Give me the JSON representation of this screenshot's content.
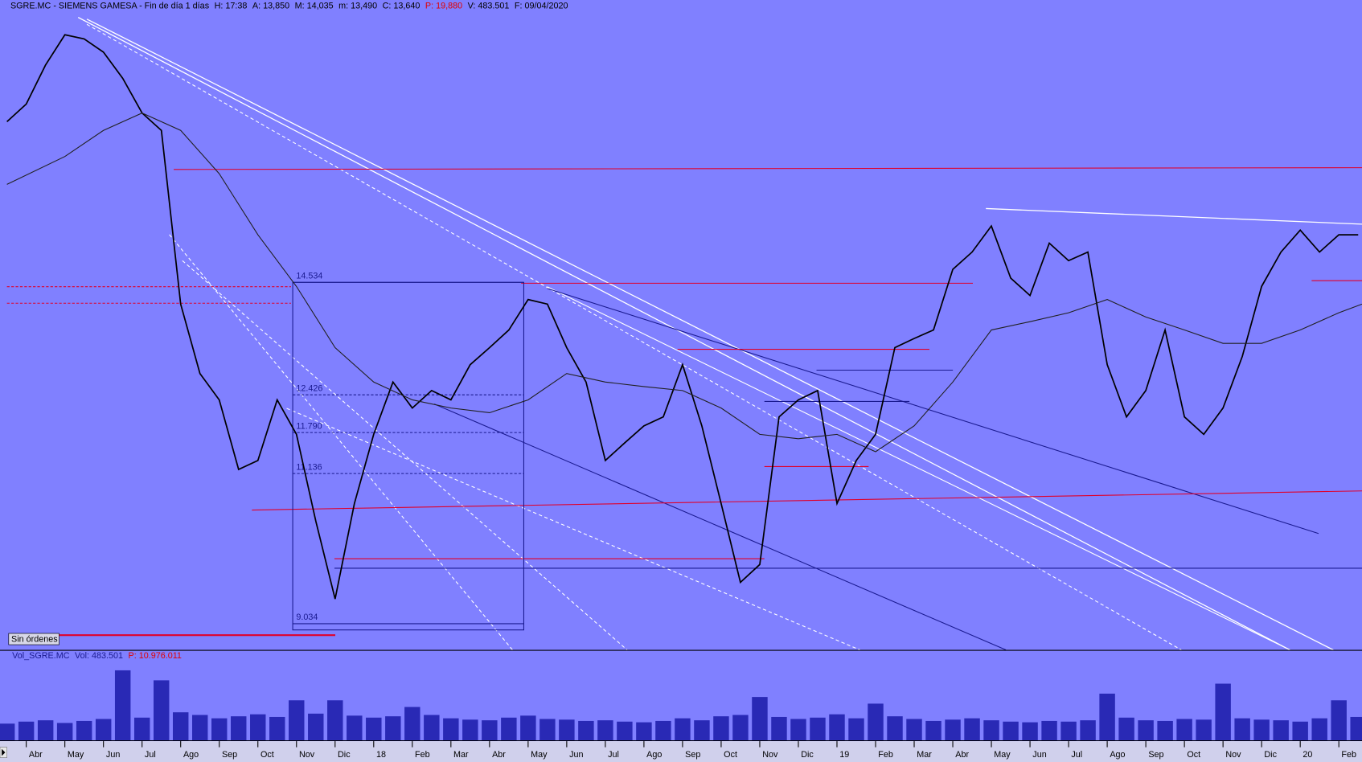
{
  "header": [
    "SGRE.MC - SIEMENS GAMESA - Fin de día 1 días",
    "H: 17:38",
    "A: 13,850",
    "M: 14,035",
    "m: 13,490",
    "C: 13,640",
    "P: 19,880",
    "V: 483.501",
    "F: 09/04/2020"
  ],
  "orders_label": "Sin órdenes",
  "volume_header": [
    "Vol_SGRE.MC",
    "Vol: 483.501",
    "P: 10.976.011"
  ],
  "chart_data": {
    "type": "line",
    "log": true,
    "ylim": [
      8.71,
      21.15
    ],
    "xlim": [
      0.5,
      35.6
    ],
    "xticks": [
      {
        "value": 1,
        "label": "Abr"
      },
      {
        "value": 2,
        "label": "May"
      },
      {
        "value": 3,
        "label": "Jun"
      },
      {
        "value": 4,
        "label": "Jul"
      },
      {
        "value": 5,
        "label": "Ago"
      },
      {
        "value": 6,
        "label": "Sep"
      },
      {
        "value": 7,
        "label": "Oct"
      },
      {
        "value": 8,
        "label": "Nov"
      },
      {
        "value": 9,
        "label": "Dic"
      },
      {
        "value": 10,
        "label": "18"
      },
      {
        "value": 11,
        "label": "Feb"
      },
      {
        "value": 12,
        "label": "Mar"
      },
      {
        "value": 13,
        "label": "Abr"
      },
      {
        "value": 14,
        "label": "May"
      },
      {
        "value": 15,
        "label": "Jun"
      },
      {
        "value": 16,
        "label": "Jul"
      },
      {
        "value": 17,
        "label": "Ago"
      },
      {
        "value": 18,
        "label": "Sep"
      },
      {
        "value": 19,
        "label": "Oct"
      },
      {
        "value": 20,
        "label": "Nov"
      },
      {
        "value": 21,
        "label": "Dic"
      },
      {
        "value": 22,
        "label": "19"
      },
      {
        "value": 23,
        "label": "Feb"
      },
      {
        "value": 24,
        "label": "Mar"
      },
      {
        "value": 25,
        "label": "Abr"
      },
      {
        "value": 26,
        "label": "May"
      },
      {
        "value": 27,
        "label": "Jun"
      },
      {
        "value": 28,
        "label": "Jul"
      },
      {
        "value": 29,
        "label": "Ago"
      },
      {
        "value": 30,
        "label": "Sep"
      },
      {
        "value": 31,
        "label": "Oct"
      },
      {
        "value": 32,
        "label": "Nov"
      },
      {
        "value": 33,
        "label": "Dic"
      },
      {
        "value": 34,
        "label": "20"
      },
      {
        "value": 35,
        "label": "Feb"
      }
    ],
    "x": [
      0.5,
      1,
      1.5,
      2,
      2.5,
      3,
      3.5,
      4,
      4.5,
      5,
      5.5,
      6,
      6.5,
      7,
      7.5,
      8,
      8.5,
      9,
      9.5,
      10,
      10.5,
      11,
      11.5,
      12,
      12.5,
      13,
      13.5,
      14,
      14.5,
      15,
      15.5,
      16,
      16.5,
      17,
      17.5,
      18,
      18.5,
      19,
      19.5,
      20,
      20.5,
      21,
      21.5,
      22,
      22.5,
      23,
      23.5,
      24,
      24.5,
      25,
      25.5,
      26,
      26.5,
      27,
      27.5,
      28,
      28.5,
      29,
      29.5,
      30,
      30.5,
      31,
      31.5,
      32,
      32.5,
      33,
      33.5,
      34,
      34.5,
      35,
      35.5
    ],
    "series": [
      {
        "color": "#000000",
        "values": [
          18.18,
          18.63,
          19.67,
          20.52,
          20.4,
          20.03,
          19.31,
          18.4,
          17.96,
          14.1,
          12.8,
          12.34,
          11.2,
          11.34,
          12.34,
          11.76,
          10.42,
          9.35,
          10.68,
          11.76,
          12.65,
          12.2,
          12.5,
          12.34,
          12.96,
          13.27,
          13.6,
          14.19,
          14.1,
          13.27,
          12.65,
          11.34,
          11.62,
          11.9,
          12.05,
          12.96,
          11.9,
          10.68,
          9.57,
          9.81,
          12.05,
          12.34,
          12.5,
          10.68,
          11.34,
          11.76,
          13.27,
          13.44,
          13.6,
          14.8,
          15.16,
          15.72,
          14.62,
          14.27,
          15.35,
          14.98,
          15.16,
          12.96,
          12.05,
          12.5,
          13.6,
          12.05,
          11.76,
          12.2,
          13.11,
          14.45,
          15.16,
          15.63,
          15.16,
          15.53,
          15.53
        ]
      },
      {
        "color": "#202020",
        "x": [
          0.5,
          2,
          3,
          4,
          5,
          6,
          7,
          8,
          9,
          10,
          11,
          12,
          13,
          14,
          15,
          16,
          17,
          18,
          19,
          20,
          21,
          22,
          23,
          24,
          25,
          26,
          27,
          28,
          29,
          30,
          31,
          32,
          33,
          34,
          35,
          35.6
        ],
        "values": [
          16.66,
          17.32,
          17.96,
          18.4,
          17.96,
          16.91,
          15.53,
          14.45,
          13.27,
          12.65,
          12.34,
          12.2,
          12.12,
          12.34,
          12.8,
          12.65,
          12.57,
          12.5,
          12.2,
          11.76,
          11.69,
          11.76,
          11.48,
          11.9,
          12.65,
          13.6,
          13.76,
          13.93,
          14.19,
          13.85,
          13.6,
          13.35,
          13.35,
          13.6,
          13.93,
          14.1
        ]
      }
    ],
    "annotations": [
      {
        "value": 14.534,
        "label": "14.534"
      },
      {
        "value": 12.426,
        "label": "12.426"
      },
      {
        "value": 11.79,
        "label": "11.790"
      },
      {
        "value": 11.136,
        "label": "11.136"
      },
      {
        "value": 9.034,
        "label": "9.034"
      }
    ],
    "volume": {
      "color": "#1a1aa8",
      "ylim": [
        0,
        12000000
      ],
      "values": [
        2500000,
        2800000,
        3000000,
        2600000,
        2900000,
        3200000,
        10500000,
        3400000,
        9000000,
        4200000,
        3800000,
        3300000,
        3600000,
        3900000,
        3500000,
        6000000,
        4000000,
        6000000,
        3700000,
        3400000,
        3600000,
        5000000,
        3800000,
        3300000,
        3100000,
        3000000,
        3400000,
        3700000,
        3200000,
        3100000,
        2900000,
        3000000,
        2800000,
        2700000,
        2900000,
        3300000,
        3000000,
        3600000,
        3800000,
        6500000,
        3500000,
        3200000,
        3400000,
        3900000,
        3300000,
        5500000,
        3600000,
        3200000,
        2900000,
        3100000,
        3300000,
        3000000,
        2800000,
        2700000,
        2900000,
        2800000,
        3000000,
        7000000,
        3400000,
        3000000,
        2900000,
        3200000,
        3100000,
        8500000,
        3300000,
        3100000,
        3000000,
        2800000,
        3300000,
        6000000,
        3500000
      ]
    }
  }
}
